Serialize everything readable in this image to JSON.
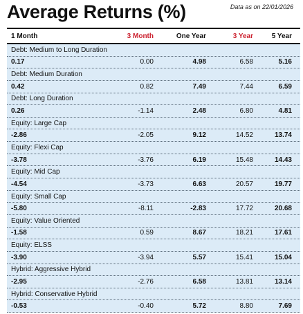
{
  "title": "Average Returns (%)",
  "as_of": "Data as on 22/01/2026",
  "columns": [
    "1 Month",
    "3 Month",
    "One Year",
    "3 Year",
    "5 Year"
  ],
  "rows": [
    {
      "category": "Debt: Medium to Long Duration",
      "values": [
        "0.17",
        "0.00",
        "4.98",
        "6.58",
        "5.16"
      ]
    },
    {
      "category": "Debt: Medium Duration",
      "values": [
        "0.42",
        "0.82",
        "7.49",
        "7.44",
        "6.59"
      ]
    },
    {
      "category": "Debt: Long Duration",
      "values": [
        "0.26",
        "-1.14",
        "2.48",
        "6.80",
        "4.81"
      ]
    },
    {
      "category": "Equity: Large Cap",
      "values": [
        "-2.86",
        "-2.05",
        "9.12",
        "14.52",
        "13.74"
      ]
    },
    {
      "category": "Equity: Flexi Cap",
      "values": [
        "-3.78",
        "-3.76",
        "6.19",
        "15.48",
        "14.43"
      ]
    },
    {
      "category": "Equity: Mid Cap",
      "values": [
        "-4.54",
        "-3.73",
        "6.63",
        "20.57",
        "19.77"
      ]
    },
    {
      "category": "Equity: Small Cap",
      "values": [
        "-5.80",
        "-8.11",
        "-2.83",
        "17.72",
        "20.68"
      ]
    },
    {
      "category": "Equity: Value Oriented",
      "values": [
        "-1.58",
        "0.59",
        "8.67",
        "18.21",
        "17.61"
      ]
    },
    {
      "category": "Equity: ELSS",
      "values": [
        "-3.90",
        "-3.94",
        "5.57",
        "15.41",
        "15.04"
      ]
    },
    {
      "category": "Hybrid: Aggressive Hybrid",
      "values": [
        "-2.95",
        "-2.76",
        "6.58",
        "13.81",
        "13.14"
      ]
    },
    {
      "category": "Hybrid: Conservative Hybrid",
      "values": [
        "-0.53",
        "-0.40",
        "5.72",
        "8.80",
        "7.69"
      ]
    }
  ],
  "colors": {
    "table_bg": "#dcebf7",
    "accent_red": "#cc2230"
  }
}
